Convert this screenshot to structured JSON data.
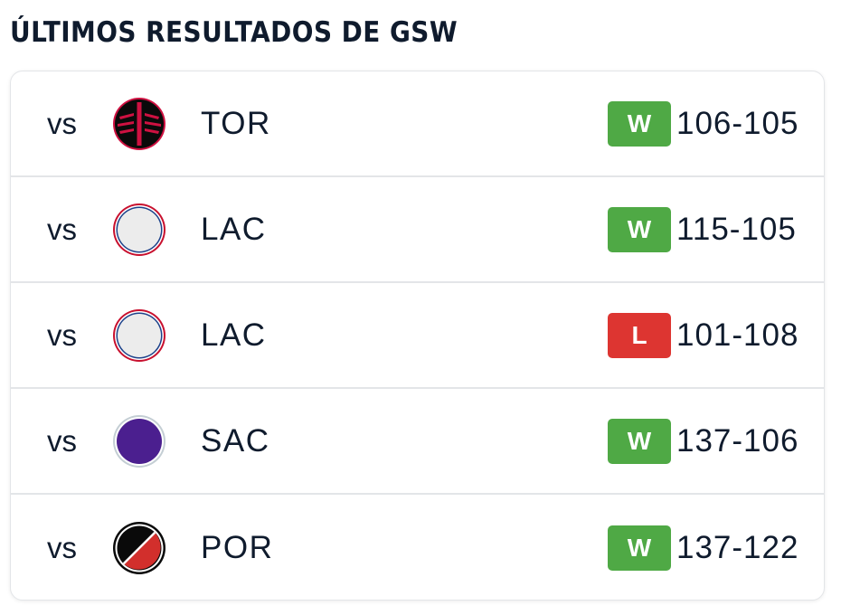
{
  "header": {
    "title": "ÚLTIMOS RESULTADOS DE GSW"
  },
  "games": [
    {
      "vs": "vs",
      "opponent": "TOR",
      "logo": "raptors-logo",
      "result": "W",
      "score": "106-105"
    },
    {
      "vs": "vs",
      "opponent": "LAC",
      "logo": "clippers-logo",
      "result": "W",
      "score": "115-105"
    },
    {
      "vs": "vs",
      "opponent": "LAC",
      "logo": "clippers-logo",
      "result": "L",
      "score": "101-108"
    },
    {
      "vs": "vs",
      "opponent": "SAC",
      "logo": "kings-logo",
      "result": "W",
      "score": "137-106"
    },
    {
      "vs": "vs",
      "opponent": "POR",
      "logo": "blazers-logo",
      "result": "W",
      "score": "137-122"
    }
  ],
  "colors": {
    "win": "#4fa945",
    "loss": "#dd3531",
    "text": "#0f1b2d",
    "border": "#e3e5e8"
  }
}
